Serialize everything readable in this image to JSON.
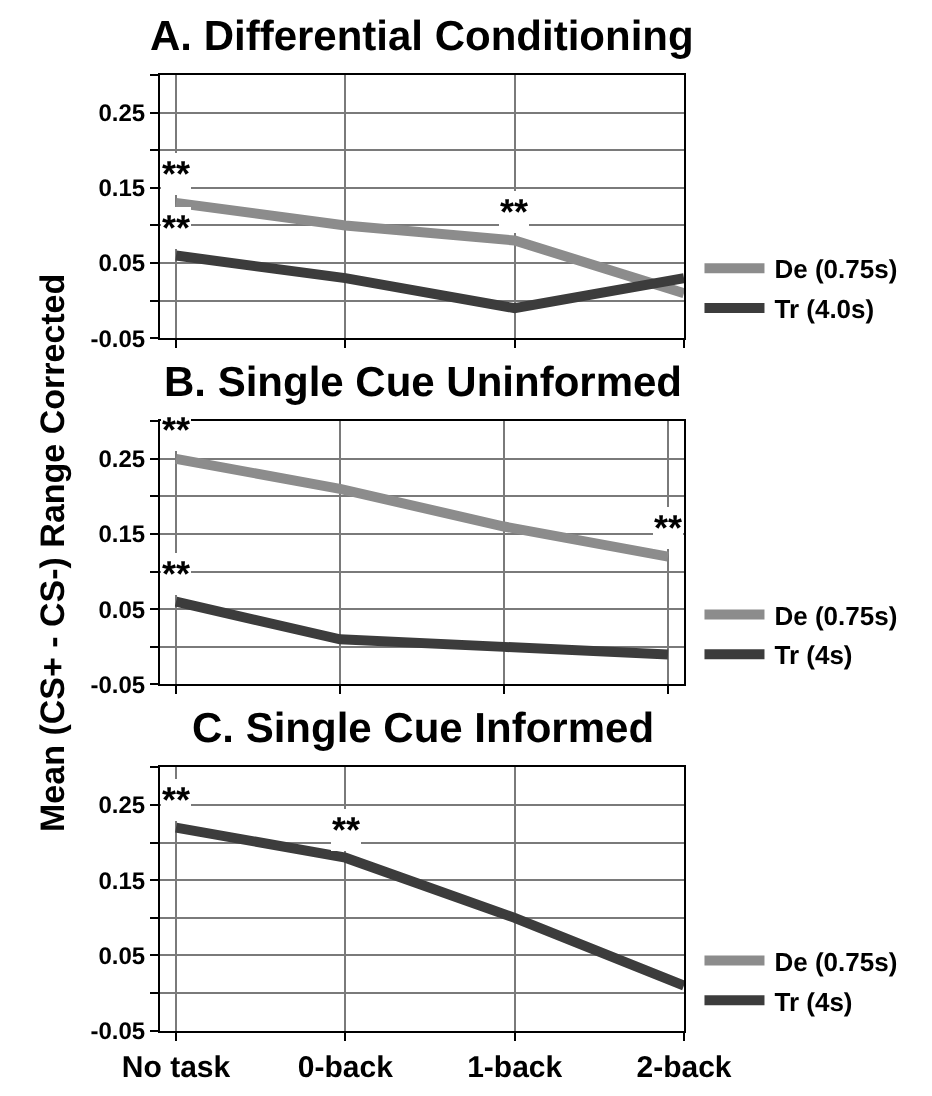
{
  "chart_data": [
    {
      "type": "line",
      "title": "A. Differential Conditioning",
      "categories": [
        "No task",
        "0-back",
        "1-back",
        "2-back"
      ],
      "series": [
        {
          "name": "De (0.75s)",
          "color": "#8c8c8c",
          "values": [
            0.13,
            0.1,
            0.08,
            0.01
          ]
        },
        {
          "name": "Tr (4.0s)",
          "color": "#3c3c3c",
          "values": [
            0.06,
            0.03,
            -0.01,
            0.03
          ]
        }
      ],
      "ylim": [
        -0.05,
        0.3
      ],
      "yticks": [
        -0.05,
        {
          "value": 0,
          "label": null
        },
        0.05,
        {
          "value": 0.1,
          "label": null
        },
        0.15,
        {
          "value": 0.2,
          "label": null
        },
        0.25,
        {
          "value": 0.3,
          "label": null
        }
      ],
      "grid": true,
      "legend": "right",
      "tick_labels": "y",
      "annotations": [
        {
          "text": "**",
          "x": "No task",
          "y": 0.13
        },
        {
          "text": "**",
          "x": "1-back",
          "y": 0.08
        },
        {
          "text": "**",
          "x": "No task",
          "y": 0.06
        }
      ]
    },
    {
      "type": "line",
      "title": "B. Single Cue Uninformed",
      "ylabel": "Mean (CS+ - CS-) Range Corrected",
      "categories": [
        "No task",
        "0-back",
        "1-back",
        "2-back"
      ],
      "series": [
        {
          "name": "De (0.75s)",
          "color": "#8c8c8c",
          "values": [
            0.25,
            0.21,
            0.16,
            0.12
          ]
        },
        {
          "name": "Tr (4s)",
          "color": "#3c3c3c",
          "values": [
            0.06,
            0.01,
            0.0,
            -0.01
          ]
        }
      ],
      "ylim": [
        -0.05,
        0.3
      ],
      "yticks": [
        -0.05,
        {
          "value": 0,
          "label": null
        },
        0.05,
        {
          "value": 0.1,
          "label": null
        },
        0.15,
        {
          "value": 0.2,
          "label": null
        },
        0.25,
        {
          "value": 0.3,
          "label": null
        }
      ],
      "grid": true,
      "legend": "right",
      "tick_labels": "y",
      "annotations": [
        {
          "text": "**",
          "x": "No task",
          "y": 0.25
        },
        {
          "text": "**",
          "x": "2-back",
          "y": 0.12
        },
        {
          "text": "**",
          "x": "No task",
          "y": 0.06
        }
      ]
    },
    {
      "type": "line",
      "title": "C. Single Cue Informed",
      "categories": [
        "No task",
        "0-back",
        "1-back",
        "2-back"
      ],
      "series": [
        {
          "name": "De (0.75s)",
          "color": "#8c8c8c",
          "values": [
            null,
            null,
            null,
            null
          ]
        },
        {
          "name": "Tr (4s)",
          "color": "#3c3c3c",
          "values": [
            0.22,
            0.18,
            0.1,
            0.01
          ]
        }
      ],
      "ylim": [
        -0.05,
        0.3
      ],
      "yticks": [
        -0.05,
        {
          "value": 0,
          "label": null
        },
        0.05,
        {
          "value": 0.1,
          "label": null
        },
        0.15,
        {
          "value": 0.2,
          "label": null
        },
        0.25,
        {
          "value": 0.3,
          "label": null
        }
      ],
      "grid": true,
      "legend": "right",
      "annotations": [
        {
          "text": "**",
          "x": "No task",
          "y": 0.22
        },
        {
          "text": "**",
          "x": "0-back",
          "y": 0.18
        }
      ]
    }
  ]
}
